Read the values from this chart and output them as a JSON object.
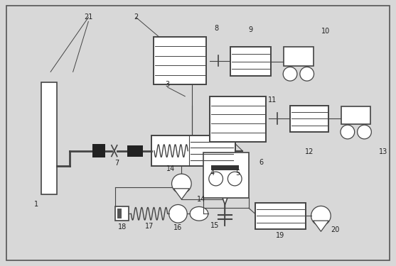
{
  "bg_color": "#d8d8d8",
  "line_color": "#444444",
  "fig_width": 5.57,
  "fig_height": 3.75,
  "dpi": 100
}
